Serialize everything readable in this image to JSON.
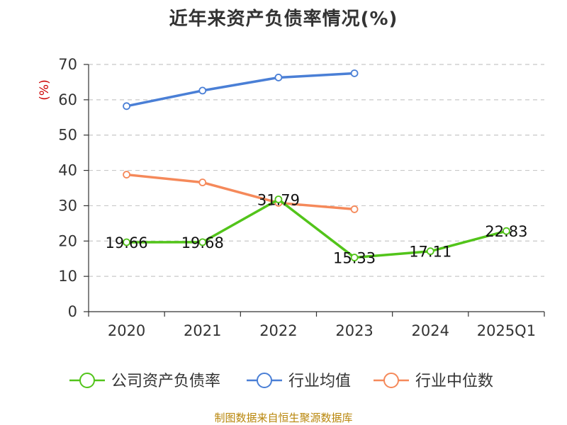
{
  "chart_data": {
    "type": "line",
    "title": "近年来资产负债率情况(%)",
    "ylabel": "(%)",
    "ylim": [
      0,
      70
    ],
    "yticks": [
      0,
      10,
      20,
      30,
      40,
      50,
      60,
      70
    ],
    "categories": [
      "2020",
      "2021",
      "2022",
      "2023",
      "2024",
      "2025Q1"
    ],
    "grid": true,
    "legend_position": "bottom",
    "series": [
      {
        "name": "公司资产负债率",
        "color": "#52c41a",
        "values": [
          19.66,
          19.68,
          31.79,
          15.33,
          17.11,
          22.83
        ],
        "labels": [
          "19.66",
          "19.68",
          "31.79",
          "15.33",
          "17.11",
          "22.83"
        ]
      },
      {
        "name": "行业均值",
        "color": "#4a7fd6",
        "values": [
          58.2,
          62.6,
          66.3,
          67.5,
          null,
          null
        ]
      },
      {
        "name": "行业中位数",
        "color": "#f5895a",
        "values": [
          38.8,
          36.6,
          30.8,
          29.0,
          null,
          null
        ]
      }
    ]
  },
  "source": "制图数据来自恒生聚源数据库"
}
